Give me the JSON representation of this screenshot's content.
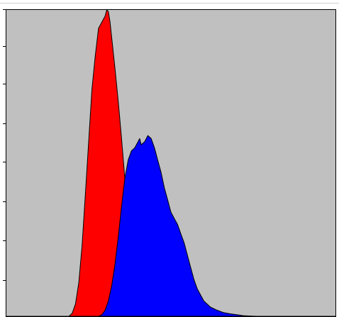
{
  "chart_data": {
    "type": "area",
    "title": "",
    "xlabel": "",
    "ylabel": "",
    "xlim": [
      0,
      100
    ],
    "ylim": [
      0,
      100
    ],
    "grid": false,
    "legend": "none",
    "background_color": "#c0c0c0",
    "series": [
      {
        "color": "#ff0000",
        "x": [
          0,
          19,
          20,
          21,
          22,
          23,
          24,
          25,
          26,
          27,
          28,
          29,
          30,
          30.5,
          31,
          31.5,
          32,
          33,
          34,
          35,
          36,
          37,
          38,
          40,
          100
        ],
        "values": [
          0,
          0,
          1,
          4,
          11,
          23,
          40,
          57,
          74,
          85,
          94,
          96,
          98,
          100,
          99.5,
          96,
          91,
          81,
          70,
          58,
          45,
          31,
          17,
          0,
          0
        ]
      },
      {
        "color": "#0000ff",
        "x": [
          0,
          28,
          29,
          30,
          31,
          32,
          33,
          34,
          35,
          36,
          37,
          38,
          39,
          40,
          40.5,
          41,
          42,
          43,
          44,
          45,
          46,
          47,
          48,
          49,
          50,
          51,
          52,
          53,
          54,
          55,
          56,
          57,
          58,
          60,
          62,
          64,
          66,
          68,
          70,
          72,
          74,
          76,
          100
        ],
        "values": [
          0,
          0,
          0.5,
          2,
          5,
          10,
          17,
          26,
          36,
          45,
          51,
          54,
          55,
          57,
          58,
          56,
          57,
          59,
          58,
          55,
          51,
          47,
          42,
          38,
          34,
          32,
          30,
          27,
          24,
          20,
          16,
          12,
          9,
          5,
          3,
          2,
          1.2,
          0.8,
          0.5,
          0.2,
          0.1,
          0,
          0
        ]
      }
    ]
  }
}
